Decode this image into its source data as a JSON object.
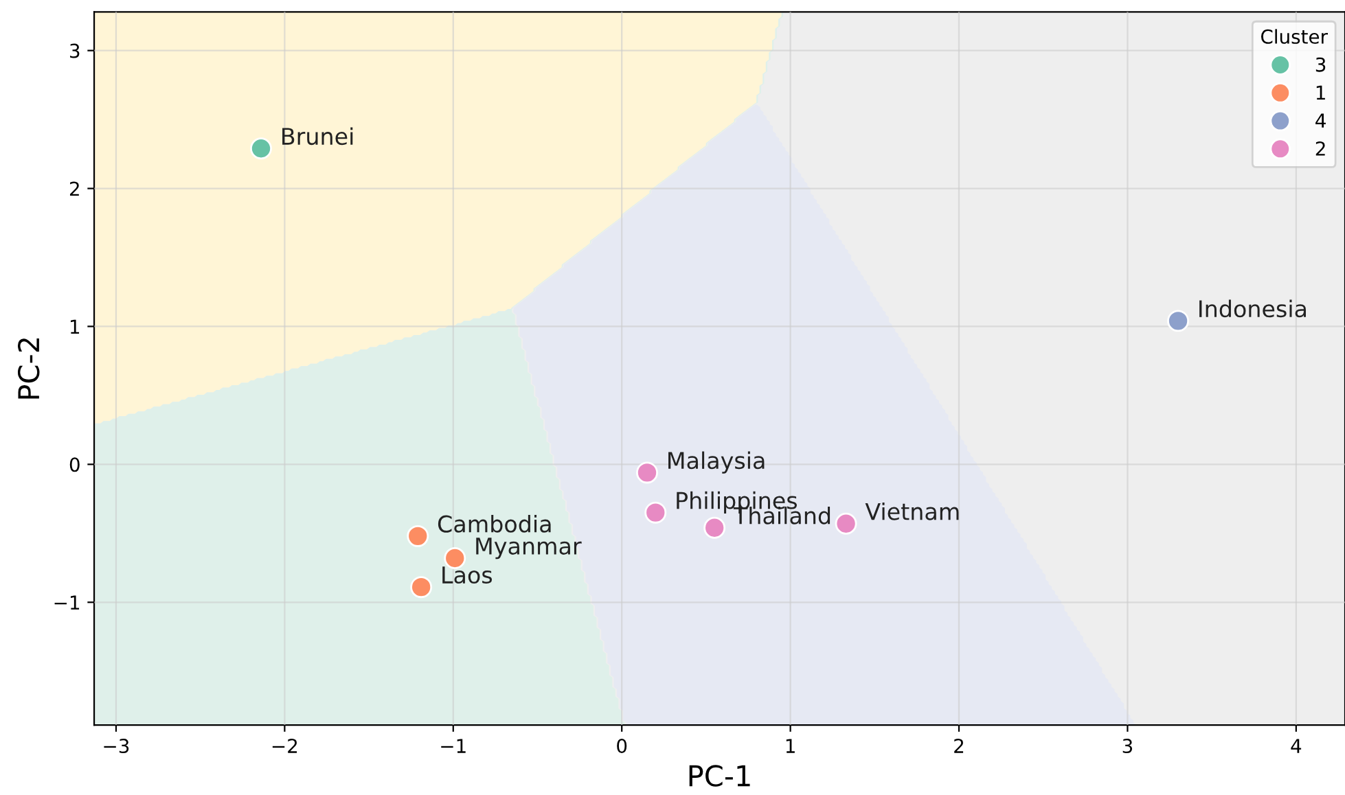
{
  "chart_data": {
    "type": "scatter",
    "xlabel": "PC-1",
    "ylabel": "PC-2",
    "legend_title": "Cluster",
    "legend": "top right",
    "grid": true,
    "marker": "circle",
    "xlim": [
      -3.13,
      4.29
    ],
    "ylim": [
      -1.89,
      3.28
    ],
    "xticks": [
      {
        "value": -3,
        "label": "−3"
      },
      {
        "value": -2,
        "label": "−2"
      },
      {
        "value": -1,
        "label": "−1"
      },
      0,
      1,
      2,
      3,
      4
    ],
    "yticks": [
      {
        "value": -1,
        "label": "−1"
      },
      0,
      1,
      2,
      3
    ],
    "series": [
      {
        "name": "3",
        "color": "#66c2a5",
        "x": [
          -2.14
        ],
        "values": [
          2.29
        ]
      },
      {
        "name": "1",
        "color": "#fc8d62",
        "x": [
          -1.21,
          -0.99,
          -1.19
        ],
        "values": [
          -0.52,
          -0.68,
          -0.89
        ]
      },
      {
        "name": "4",
        "color": "#8da0cb",
        "x": [
          3.3
        ],
        "values": [
          1.04
        ]
      },
      {
        "name": "2",
        "color": "#e78ac3",
        "x": [
          0.15,
          0.2,
          0.55,
          1.33
        ],
        "values": [
          -0.06,
          -0.35,
          -0.46,
          -0.43
        ]
      }
    ],
    "annotations": [
      {
        "text": "Brunei",
        "x": -2.14,
        "y": 2.29
      },
      {
        "text": "Cambodia",
        "x": -1.21,
        "y": -0.52
      },
      {
        "text": "Myanmar",
        "x": -0.99,
        "y": -0.68
      },
      {
        "text": "Laos",
        "x": -1.19,
        "y": -0.89
      },
      {
        "text": "Indonesia",
        "x": 3.3,
        "y": 1.04
      },
      {
        "text": "Malaysia",
        "x": 0.15,
        "y": -0.06
      },
      {
        "text": "Philippines",
        "x": 0.2,
        "y": -0.35
      },
      {
        "text": "Thailand",
        "x": 0.55,
        "y": -0.46
      },
      {
        "text": "Vietnam",
        "x": 1.33,
        "y": -0.43
      }
    ]
  }
}
